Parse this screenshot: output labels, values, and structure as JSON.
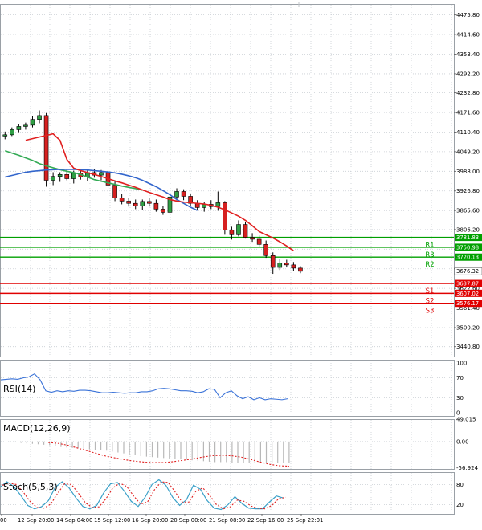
{
  "chart_data": [
    {
      "type": "candlestick",
      "panel": "price",
      "ylim": [
        3410,
        4510
      ],
      "y_ticks": [
        "4475.80",
        "4414.60",
        "4353.40",
        "4292.20",
        "4232.80",
        "4171.60",
        "4110.40",
        "4049.20",
        "3988.00",
        "3926.80",
        "3865.60",
        "3806.20",
        "3745.00",
        "3683.80",
        "3622.60",
        "3561.40",
        "3500.20",
        "3440.80"
      ],
      "candles": [
        {
          "o": 4098,
          "h": 4112,
          "l": 4088,
          "c": 4102
        },
        {
          "o": 4102,
          "h": 4125,
          "l": 4098,
          "c": 4118
        },
        {
          "o": 4118,
          "h": 4135,
          "l": 4110,
          "c": 4128
        },
        {
          "o": 4128,
          "h": 4140,
          "l": 4118,
          "c": 4132
        },
        {
          "o": 4132,
          "h": 4160,
          "l": 4125,
          "c": 4150
        },
        {
          "o": 4150,
          "h": 4178,
          "l": 4138,
          "c": 4162
        },
        {
          "o": 4162,
          "h": 4170,
          "l": 3940,
          "c": 3960
        },
        {
          "o": 3960,
          "h": 3985,
          "l": 3945,
          "c": 3972
        },
        {
          "o": 3972,
          "h": 3985,
          "l": 3955,
          "c": 3978
        },
        {
          "o": 3978,
          "h": 3992,
          "l": 3960,
          "c": 3965
        },
        {
          "o": 3965,
          "h": 3990,
          "l": 3950,
          "c": 3982
        },
        {
          "o": 3982,
          "h": 3995,
          "l": 3962,
          "c": 3970
        },
        {
          "o": 3970,
          "h": 3992,
          "l": 3958,
          "c": 3984
        },
        {
          "o": 3984,
          "h": 3994,
          "l": 3968,
          "c": 3976
        },
        {
          "o": 3976,
          "h": 3992,
          "l": 3960,
          "c": 3984
        },
        {
          "o": 3984,
          "h": 3990,
          "l": 3935,
          "c": 3945
        },
        {
          "o": 3945,
          "h": 3958,
          "l": 3895,
          "c": 3905
        },
        {
          "o": 3905,
          "h": 3918,
          "l": 3885,
          "c": 3895
        },
        {
          "o": 3895,
          "h": 3905,
          "l": 3878,
          "c": 3888
        },
        {
          "o": 3888,
          "h": 3900,
          "l": 3870,
          "c": 3880
        },
        {
          "o": 3880,
          "h": 3900,
          "l": 3868,
          "c": 3894
        },
        {
          "o": 3894,
          "h": 3904,
          "l": 3878,
          "c": 3888
        },
        {
          "o": 3888,
          "h": 3900,
          "l": 3862,
          "c": 3870
        },
        {
          "o": 3870,
          "h": 3880,
          "l": 3852,
          "c": 3860
        },
        {
          "o": 3860,
          "h": 3918,
          "l": 3855,
          "c": 3908
        },
        {
          "o": 3908,
          "h": 3935,
          "l": 3898,
          "c": 3925
        },
        {
          "o": 3925,
          "h": 3932,
          "l": 3898,
          "c": 3910
        },
        {
          "o": 3910,
          "h": 3918,
          "l": 3880,
          "c": 3888
        },
        {
          "o": 3888,
          "h": 3898,
          "l": 3868,
          "c": 3875
        },
        {
          "o": 3875,
          "h": 3892,
          "l": 3862,
          "c": 3885
        },
        {
          "o": 3885,
          "h": 3898,
          "l": 3870,
          "c": 3878
        },
        {
          "o": 3878,
          "h": 3925,
          "l": 3865,
          "c": 3890
        },
        {
          "o": 3890,
          "h": 3895,
          "l": 3790,
          "c": 3805
        },
        {
          "o": 3805,
          "h": 3815,
          "l": 3775,
          "c": 3790
        },
        {
          "o": 3790,
          "h": 3835,
          "l": 3785,
          "c": 3822
        },
        {
          "o": 3822,
          "h": 3830,
          "l": 3778,
          "c": 3782
        },
        {
          "o": 3782,
          "h": 3795,
          "l": 3768,
          "c": 3776
        },
        {
          "o": 3776,
          "h": 3788,
          "l": 3752,
          "c": 3760
        },
        {
          "o": 3760,
          "h": 3772,
          "l": 3718,
          "c": 3725
        },
        {
          "o": 3725,
          "h": 3735,
          "l": 3668,
          "c": 3688
        },
        {
          "o": 3688,
          "h": 3715,
          "l": 3680,
          "c": 3702
        },
        {
          "o": 3702,
          "h": 3712,
          "l": 3688,
          "c": 3696
        },
        {
          "o": 3696,
          "h": 3705,
          "l": 3678,
          "c": 3686
        },
        {
          "o": 3686,
          "h": 3692,
          "l": 3670,
          "c": 3676
        }
      ],
      "ma_red": [
        4085,
        4090,
        4095,
        4100,
        4105,
        4085,
        4025,
        3998,
        3990,
        3984,
        3978,
        3972,
        3965,
        3958,
        3952,
        3945,
        3938,
        3930,
        3922,
        3915,
        3908,
        3900,
        3895,
        3892,
        3890,
        3888,
        3886,
        3882,
        3876,
        3868,
        3858,
        3848,
        3835,
        3818,
        3800,
        3790,
        3780,
        3768,
        3755,
        3740
      ],
      "ma_blue": [
        3970,
        3975,
        3980,
        3985,
        3988,
        3990,
        3992,
        3993,
        3994,
        3994,
        3994,
        3993,
        3992,
        3990,
        3988,
        3986,
        3983,
        3979,
        3974,
        3968,
        3960,
        3950,
        3940,
        3928,
        3915,
        3900,
        3888,
        3876,
        3866
      ],
      "ma_green": [
        4052,
        4045,
        4038,
        4030,
        4022,
        4012,
        4005,
        3999,
        3993,
        3988,
        3984,
        3978,
        3970,
        3962,
        3957,
        3952,
        3947,
        3942,
        3938,
        3934,
        3929
      ],
      "levels": [
        {
          "label": "R3",
          "value": 3750.98,
          "price_label": "3750.98",
          "color": "#00a000"
        },
        {
          "label": "R2",
          "value": 3720.13,
          "price_label": "3720.13",
          "color": "#00a000"
        },
        {
          "label": "R1",
          "value": 3781.83,
          "price_label": "3781.83",
          "color": "#00a000"
        },
        {
          "label": "S1",
          "value": 3637.87,
          "price_label": "3637.87",
          "color": "#e00000"
        },
        {
          "label": "S2",
          "value": 3607.02,
          "price_label": "3607.02",
          "color": "#e00000"
        },
        {
          "label": "S3",
          "value": 3576.17,
          "price_label": "3576.17",
          "color": "#e00000"
        }
      ],
      "last_price": "3676.32",
      "x_labels": [
        "00",
        "12 Sep 20:00",
        "14 Sep 04:00",
        "15 Sep 12:00",
        "16 Sep 20:00",
        "20 Sep 00:00",
        "21 Sep 08:00",
        "22 Sep 16:00",
        "25 Sep 22:01"
      ]
    },
    {
      "type": "line",
      "panel": "rsi",
      "title": "RSI(14)",
      "ylim": [
        0,
        100
      ],
      "y_ticks": [
        "100",
        "70",
        "30",
        "0"
      ],
      "values": [
        66,
        67,
        68,
        67,
        70,
        72,
        78,
        66,
        44,
        41,
        44,
        42,
        44,
        43,
        45,
        45,
        44,
        42,
        40,
        40,
        41,
        40,
        39,
        40,
        40,
        42,
        42,
        44,
        48,
        49,
        48,
        46,
        44,
        44,
        43,
        40,
        42,
        48,
        47,
        30,
        40,
        44,
        34,
        28,
        32,
        26,
        30,
        26,
        28,
        27,
        26,
        28
      ]
    },
    {
      "type": "bar",
      "panel": "macd",
      "title": "MACD(12,26,9)",
      "ylim": [
        -60,
        49
      ],
      "y_ticks": [
        "49.015",
        "0.00",
        "-56.924"
      ],
      "histogram": [
        -1,
        -2,
        -3,
        -4,
        -5,
        -6,
        -7,
        -8,
        -10,
        -12,
        -13,
        -14,
        -15,
        -16,
        -17,
        -18,
        -19,
        -20,
        -22,
        -24,
        -26,
        -28,
        -30,
        -32,
        -33,
        -34,
        -35,
        -36,
        -37,
        -38,
        -39,
        -40,
        -41,
        -42,
        -43,
        -44,
        -45,
        -45,
        -45,
        -46,
        -46,
        -46,
        -47,
        -47,
        -47,
        -47,
        -46,
        -46,
        -47,
        -47
      ],
      "signal": [
        -2,
        -4,
        -8,
        -14,
        -20,
        -26,
        -32,
        -36,
        -40,
        -43,
        -45,
        -46,
        -46,
        -44,
        -41,
        -38,
        -34,
        -31,
        -30,
        -31,
        -34,
        -39,
        -45,
        -50,
        -53,
        -54
      ]
    },
    {
      "type": "line",
      "panel": "stoch",
      "title": "Stoch(5,5,3)",
      "ylim": [
        0,
        100
      ],
      "y_ticks": [
        "80",
        "20"
      ],
      "k": [
        72,
        88,
        74,
        48,
        18,
        8,
        14,
        32,
        72,
        88,
        70,
        40,
        15,
        8,
        18,
        55,
        82,
        86,
        60,
        30,
        15,
        42,
        80,
        94,
        78,
        42,
        18,
        35,
        78,
        66,
        32,
        10,
        6,
        20,
        44,
        24,
        10,
        8,
        8,
        28,
        46,
        40
      ],
      "d": [
        78,
        84,
        80,
        58,
        30,
        12,
        10,
        22,
        54,
        82,
        80,
        54,
        26,
        12,
        14,
        38,
        70,
        84,
        74,
        46,
        22,
        28,
        64,
        88,
        86,
        58,
        28,
        28,
        60,
        70,
        48,
        20,
        8,
        14,
        34,
        30,
        16,
        10,
        8,
        18,
        38,
        42
      ]
    }
  ]
}
